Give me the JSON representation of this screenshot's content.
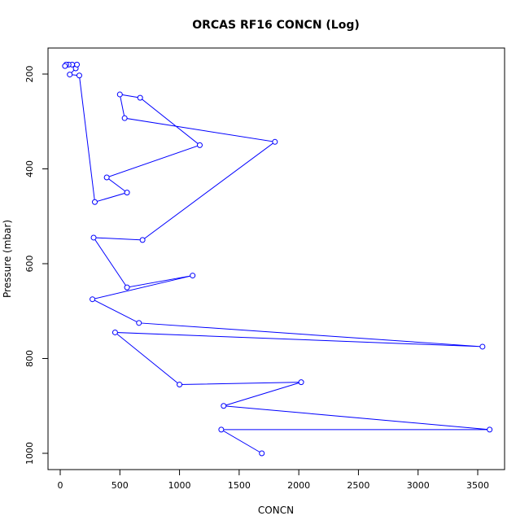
{
  "chart_data": {
    "type": "line",
    "title": "ORCAS RF16 CONCN (Log)",
    "xlabel": "CONCN",
    "ylabel": "Pressure (mbar)",
    "xlim": [
      0,
      3600
    ],
    "ylim": [
      1000,
      180
    ],
    "y_reversed": true,
    "grid": false,
    "markers": "open-circle",
    "x_ticks": [
      0,
      500,
      1000,
      1500,
      2000,
      2500,
      3000,
      3500
    ],
    "y_ticks": [
      200,
      400,
      600,
      800,
      1000
    ],
    "color": "#0000ff",
    "points": [
      {
        "x": 1690,
        "y": 1000
      },
      {
        "x": 1350,
        "y": 950
      },
      {
        "x": 3600,
        "y": 950
      },
      {
        "x": 1370,
        "y": 900
      },
      {
        "x": 2020,
        "y": 850
      },
      {
        "x": 1000,
        "y": 855
      },
      {
        "x": 460,
        "y": 745
      },
      {
        "x": 3540,
        "y": 775
      },
      {
        "x": 660,
        "y": 725
      },
      {
        "x": 270,
        "y": 675
      },
      {
        "x": 1110,
        "y": 625
      },
      {
        "x": 560,
        "y": 650
      },
      {
        "x": 280,
        "y": 545
      },
      {
        "x": 690,
        "y": 550
      },
      {
        "x": 1800,
        "y": 343
      },
      {
        "x": 540,
        "y": 293
      },
      {
        "x": 500,
        "y": 243
      },
      {
        "x": 670,
        "y": 250
      },
      {
        "x": 1170,
        "y": 350
      },
      {
        "x": 390,
        "y": 418
      },
      {
        "x": 560,
        "y": 450
      },
      {
        "x": 290,
        "y": 470
      },
      {
        "x": 160,
        "y": 203
      },
      {
        "x": 80,
        "y": 201
      },
      {
        "x": 130,
        "y": 188
      },
      {
        "x": 140,
        "y": 180
      },
      {
        "x": 100,
        "y": 180
      },
      {
        "x": 70,
        "y": 180
      },
      {
        "x": 50,
        "y": 180
      },
      {
        "x": 40,
        "y": 183
      }
    ]
  }
}
